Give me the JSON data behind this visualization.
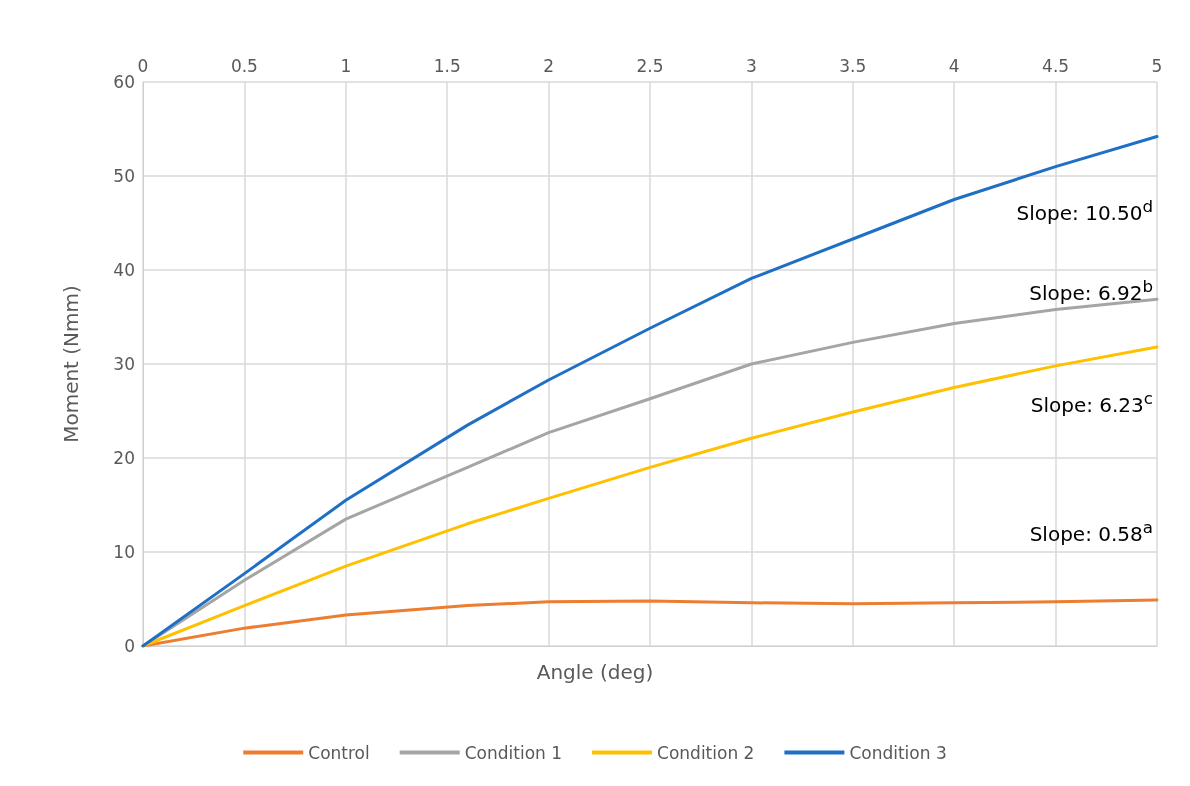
{
  "chart_data": {
    "type": "line",
    "xlabel": "Angle (deg)",
    "ylabel": "Moment (Nmm)",
    "x": [
      0,
      0.5,
      1,
      1.6,
      2,
      2.5,
      3,
      3.5,
      4,
      4.5,
      5
    ],
    "series": [
      {
        "name": "Control",
        "color": "#ed7d31",
        "values": [
          0,
          1.9,
          3.3,
          4.3,
          4.7,
          4.8,
          4.6,
          4.5,
          4.6,
          4.7,
          4.9
        ]
      },
      {
        "name": "Condition 1",
        "color": "#a5a5a5",
        "values": [
          0,
          7.0,
          13.5,
          19.0,
          22.7,
          26.3,
          30.0,
          32.3,
          34.3,
          35.8,
          36.9
        ]
      },
      {
        "name": "Condition 2",
        "color": "#ffc000",
        "values": [
          0,
          4.3,
          8.5,
          13.0,
          15.7,
          19.0,
          22.1,
          24.9,
          27.5,
          29.8,
          31.8
        ]
      },
      {
        "name": "Condition 3",
        "color": "#1f6fc5",
        "values": [
          0,
          7.7,
          15.5,
          23.5,
          28.3,
          33.8,
          39.1,
          43.3,
          47.5,
          51.0,
          54.2
        ]
      }
    ],
    "xlim": [
      0,
      5
    ],
    "xticks": [
      0,
      0.5,
      1,
      1.5,
      2,
      2.5,
      3,
      3.5,
      4,
      4.5,
      5
    ],
    "ylim": [
      0,
      60
    ],
    "yticks": [
      0,
      10,
      20,
      30,
      40,
      50,
      60
    ],
    "grid": true,
    "legend": "bottom",
    "marker": "none",
    "line_style": "solid",
    "annotations": [
      "Slope: 0.58$^{a}$",
      "Slope: 6.92$^{b}$",
      "Slope: 6.23$^{c}$",
      "Slope: 10.50$^{d}$"
    ]
  }
}
